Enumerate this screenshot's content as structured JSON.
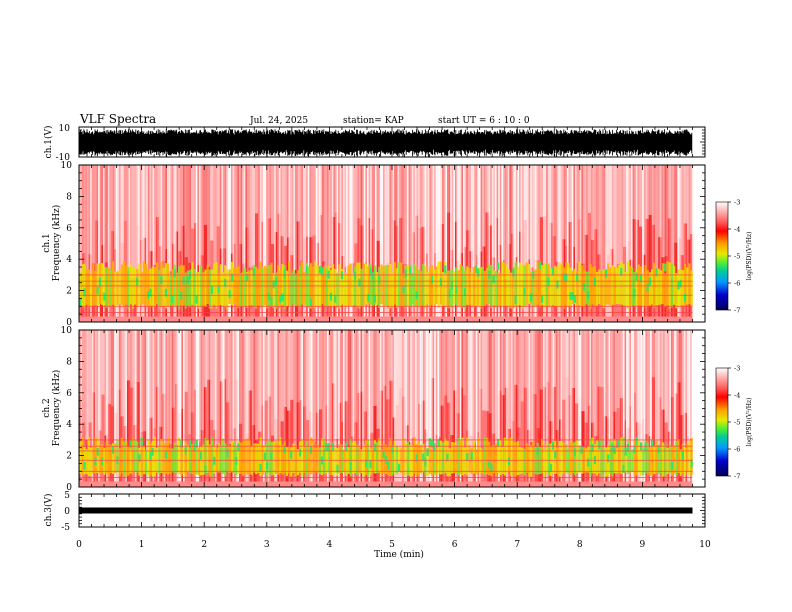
{
  "header": {
    "title": "VLF Spectra",
    "date": "Jul. 24, 2025",
    "station": "station= KAP",
    "start_ut": "start  UT =   6  : 10 : 0"
  },
  "colorbar": {
    "label": "log(PSD)(V²/Hz)",
    "ticks": [
      "-3",
      "-4",
      "-5",
      "-6",
      "-7"
    ],
    "values": [
      -3,
      -4,
      -5,
      -6,
      -7
    ],
    "colors": [
      "#ffffff",
      "#ff2020",
      "#ff9900",
      "#e0e000",
      "#66ee33",
      "#00cc88",
      "#00a0ff",
      "#0000cc",
      "#000066"
    ]
  },
  "chart_data": [
    {
      "type": "line",
      "name": "ch1-waveform",
      "ylabel": "ch.1(V)",
      "ylim": [
        -10,
        10
      ],
      "yticks": [
        "10",
        "-10"
      ],
      "xlim": [
        0,
        10
      ],
      "description_values": "dense black waveform filling roughly -8 to 8 V"
    },
    {
      "type": "heatmap",
      "name": "ch1-spectrogram",
      "ylabel": "ch.1\nFrequency (kHz)",
      "ylabel_top": "ch.1",
      "ylabel_bottom": "Frequency (kHz)",
      "ylim": [
        0,
        10
      ],
      "yticks": [
        "0",
        "2",
        "4",
        "6",
        "8",
        "10"
      ],
      "xlim": [
        0,
        10
      ],
      "xticks": [
        0,
        1,
        2,
        3,
        4,
        5,
        6,
        7,
        8,
        9,
        10
      ],
      "data_xmax": 9.8,
      "band_kHz": [
        1,
        3.4
      ],
      "band_level": -5,
      "background_level": -3.8
    },
    {
      "type": "heatmap",
      "name": "ch2-spectrogram",
      "ylabel_top": "ch.2",
      "ylabel_bottom": "Frequency (kHz)",
      "ylim": [
        0,
        10
      ],
      "yticks": [
        "0",
        "2",
        "4",
        "6",
        "8",
        "10"
      ],
      "xlim": [
        0,
        10
      ],
      "xticks": [
        0,
        1,
        2,
        3,
        4,
        5,
        6,
        7,
        8,
        9,
        10
      ],
      "data_xmax": 9.8,
      "band_kHz": [
        0.8,
        2.7
      ],
      "band_level": -5,
      "background_level": -3.8
    },
    {
      "type": "line",
      "name": "ch3-waveform",
      "ylabel": "ch.3(V)",
      "ylim": [
        -5,
        5
      ],
      "yticks": [
        "5",
        "0",
        "-5"
      ],
      "xlim": [
        0,
        10
      ],
      "level_V": 0,
      "xlabel": "Time (min)",
      "xticklabels": [
        "0",
        "1",
        "2",
        "3",
        "4",
        "5",
        "6",
        "7",
        "8",
        "9",
        "10"
      ]
    }
  ]
}
